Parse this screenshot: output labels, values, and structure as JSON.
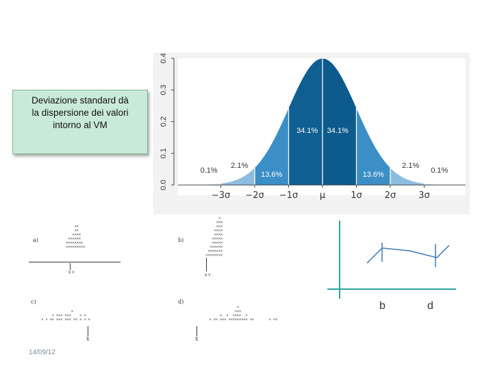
{
  "callout": {
    "text": "Deviazione standard dà\nla dispersione dei valori\nintorno al VM"
  },
  "chart_data": {
    "type": "area",
    "x_ticks": [
      "−3σ",
      "−2σ",
      "−1σ",
      "μ",
      "1σ",
      "2σ",
      "3σ"
    ],
    "y_ticks": [
      "0.0",
      "0.1",
      "0.2",
      "0.3",
      "0.4"
    ],
    "ylim": [
      0,
      0.4
    ],
    "region_labels": [
      "0.1%",
      "2.1%",
      "13.6%",
      "34.1%",
      "34.1%",
      "13.6%",
      "2.1%",
      "0.1%"
    ],
    "colors": {
      "center": "#0d5a8c",
      "one_sigma_dark": "#0f5f93",
      "two_sigma": "#3b8ec6",
      "three_sigma": "#8cbde0",
      "frame_bg": "#f2f2f2"
    }
  },
  "panels": {
    "a": {
      "label": "a)",
      "marker": "x v"
    },
    "b": {
      "label": "b)",
      "marker": "x v"
    },
    "c": {
      "label": "c)",
      "marker": "x̄"
    },
    "d": {
      "label": "d)",
      "marker": "x̄"
    }
  },
  "sketch": {
    "labels": [
      "b",
      "d"
    ],
    "axis_color": "#2aa39a",
    "line_color": "#3a78b8"
  },
  "footer": {
    "date": "14/09/12"
  }
}
